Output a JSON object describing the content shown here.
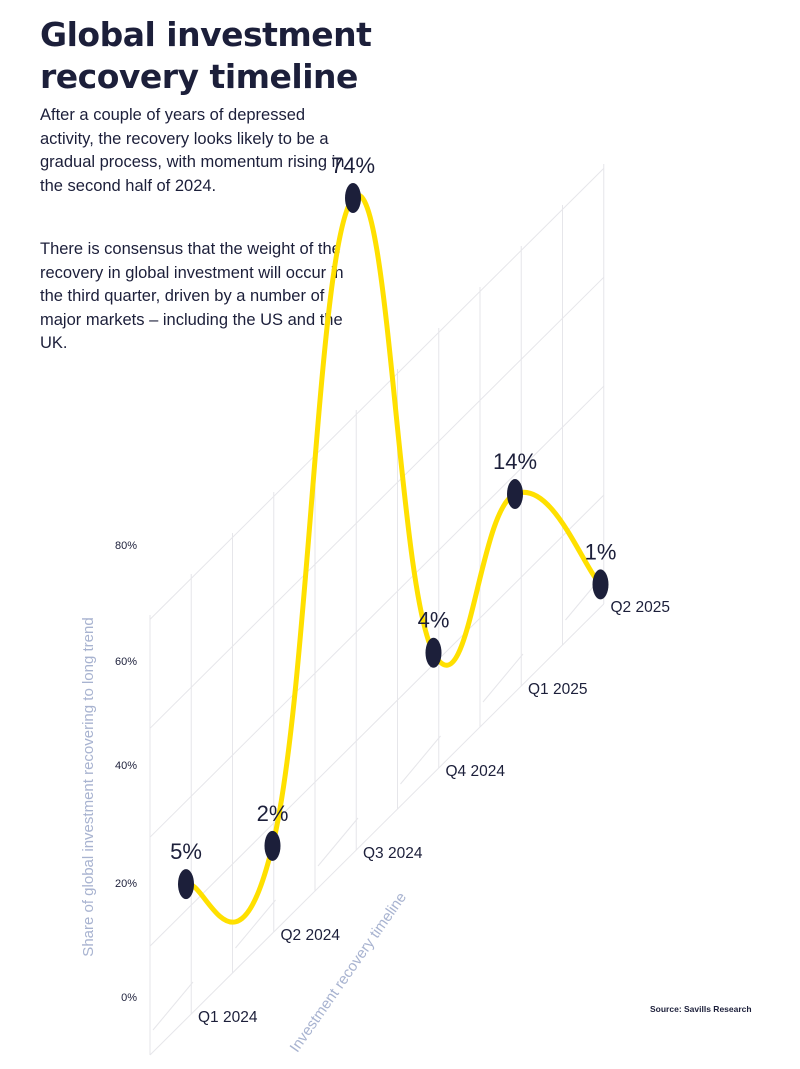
{
  "title": "Global investment recovery timeline",
  "paragraphs": [
    "After a couple of years of depressed activity, the recovery looks likely to be a gradual process, with momentum rising in the second half of 2024.",
    "There is consensus that the weight of the recovery in global investment will occur in the third quarter, driven by a number of major markets – including the US and the UK."
  ],
  "source": "Source: Savills Research",
  "colors": {
    "line": "#ffe000",
    "marker": "#1c1f3a",
    "grid": "#e6e6ea",
    "axis_label": "#a8b3d0"
  },
  "chart_data": {
    "type": "line",
    "categories": [
      "Q1 2024",
      "Q2 2024",
      "Q3 2024",
      "Q4 2024",
      "Q1 2025",
      "Q2 2025"
    ],
    "values": [
      5,
      2,
      74,
      4,
      14,
      1
    ],
    "data_labels": [
      "5%",
      "2%",
      "74%",
      "4%",
      "14%",
      "1%"
    ],
    "y_ticks": [
      "0%",
      "20%",
      "40%",
      "60%",
      "80%"
    ],
    "ylabel": "Share of global investment recovering to long trend",
    "xlabel": "Investment recovery timeline",
    "grid": true,
    "legend": "none"
  }
}
